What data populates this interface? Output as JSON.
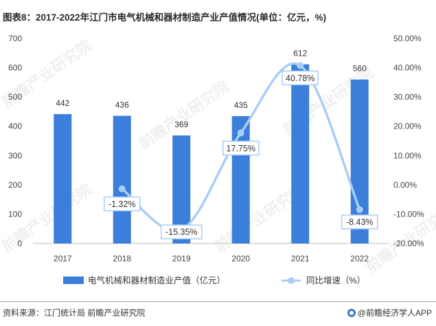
{
  "title": "图表8：2017-2022年江门市电气机械和器材制造产业产值情况(单位：亿元，%)",
  "source": "资料来源：江门统计局 前瞻产业研究院",
  "brand": "@前瞻经济学人APP",
  "watermark": "前瞻产业研究院",
  "colors": {
    "bar": "#3b7fdb",
    "line": "#a9cdf5",
    "label_border": "#a9cdf5"
  },
  "chart_data": {
    "type": "bar+line",
    "categories": [
      "2017",
      "2018",
      "2019",
      "2020",
      "2021",
      "2022"
    ],
    "series": [
      {
        "name": "电气机械和器材制造业产值（亿元）",
        "type": "bar",
        "axis": "left",
        "values": [
          442,
          436,
          369,
          435,
          612,
          560
        ],
        "labels": [
          "442",
          "436",
          "369",
          "435",
          "612",
          "560"
        ]
      },
      {
        "name": "同比增速（%）",
        "type": "line",
        "axis": "right",
        "values": [
          null,
          -1.32,
          -15.35,
          17.75,
          40.78,
          -8.43
        ],
        "labels": [
          "",
          "-1.32%",
          "-15.35%",
          "17.75%",
          "40.78%",
          "-8.43%"
        ]
      }
    ],
    "y_left": {
      "min": 0,
      "max": 700,
      "ticks": [
        "0",
        "100",
        "200",
        "300",
        "400",
        "500",
        "600",
        "700"
      ]
    },
    "y_right": {
      "min": -20,
      "max": 50,
      "ticks": [
        "-20.00%",
        "-10.00%",
        "0.00%",
        "10.00%",
        "20.00%",
        "30.00%",
        "40.00%",
        "50.00%"
      ]
    },
    "grid": false,
    "legend": "bottom"
  }
}
